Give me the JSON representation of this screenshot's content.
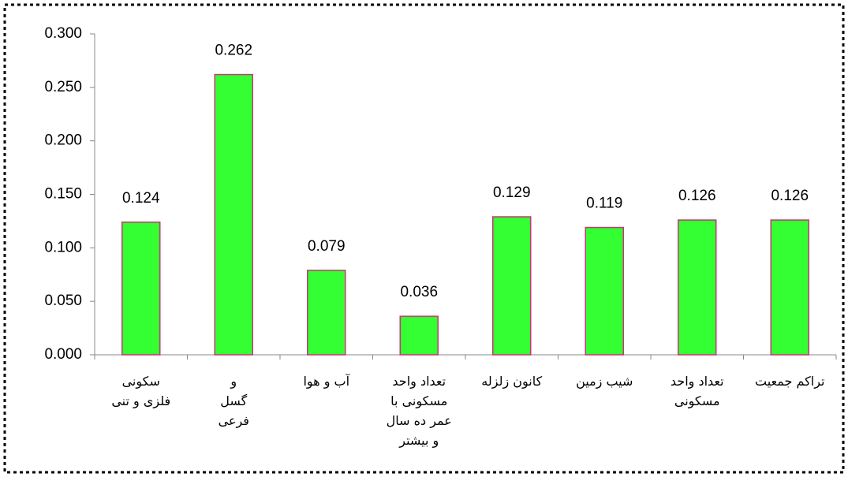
{
  "chart_data": {
    "type": "bar",
    "categories": [
      [
        "سکونی",
        "فلزی و تنی"
      ],
      [
        "و",
        "گسل",
        "فرعی"
      ],
      [
        "آب و هوا"
      ],
      [
        "تعداد واحد",
        "مسکونی با",
        "عمر ده سال",
        "و بیشتر"
      ],
      [
        "کانون زلزله"
      ],
      [
        "شیب زمین"
      ],
      [
        "تعداد واحد",
        "مسکونی"
      ],
      [
        "تراکم جمعیت"
      ]
    ],
    "values": [
      0.124,
      0.262,
      0.079,
      0.036,
      0.129,
      0.119,
      0.126,
      0.126
    ],
    "color": "#33ff33",
    "edge_color": "#cc3377",
    "ylim": [
      0,
      0.3
    ],
    "yticks": [
      {
        "value": 0,
        "label": "0.000"
      },
      {
        "value": 0.05,
        "label": "0.050"
      },
      {
        "value": 0.1,
        "label": "0.100"
      },
      {
        "value": 0.15,
        "label": "0.150"
      },
      {
        "value": 0.2,
        "label": "0.200"
      },
      {
        "value": 0.25,
        "label": "0.250"
      },
      {
        "value": 0.3,
        "label": "0.300"
      }
    ]
  }
}
